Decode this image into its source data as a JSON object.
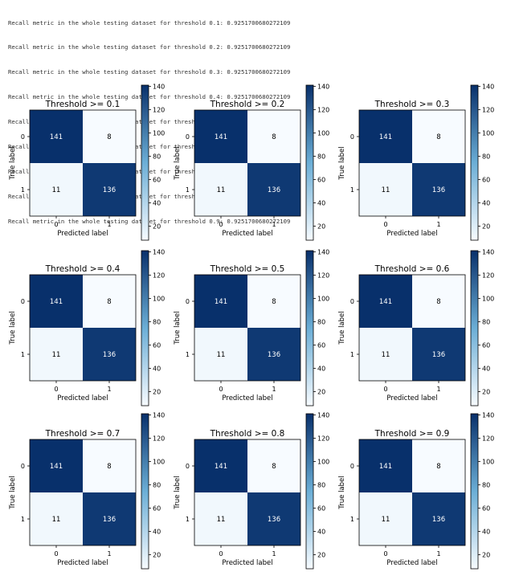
{
  "log_lines": [
    "Recall metric in the whole testing dataset for threshold 0.1: 0.9251700680272109",
    "Recall metric in the whole testing dataset for threshold 0.2: 0.9251700680272109",
    "Recall metric in the whole testing dataset for threshold 0.3: 0.9251700680272109",
    "Recall metric in the whole testing dataset for threshold 0.4: 0.9251700680272109",
    "Recall metric in the whole testing dataset for threshold 0.5: 0.9251700680272109",
    "Recall metric in the whole testing dataset for threshold 0.6: 0.9251700680272109",
    "Recall metric in the whole testing dataset for threshold 0.7: 0.9251700680272109",
    "Recall metric in the whole testing dataset for threshold 0.8: 0.9251700680272109",
    "Recall metric in the whole testing dataset for threshold 0.9: 0.9251700680272109"
  ],
  "colormap": {
    "name": "Blues",
    "low": "#f7fbff",
    "mid": "#6baed6",
    "high": "#08306b",
    "text_light": "#ffffff",
    "text_dark": "#000000"
  },
  "chart_data": [
    {
      "type": "heatmap",
      "title": "Threshold >= 0.1",
      "xlabel": "Predicted label",
      "ylabel": "True label",
      "x_ticks": [
        "0",
        "1"
      ],
      "y_ticks": [
        "0",
        "1"
      ],
      "matrix": [
        [
          141,
          8
        ],
        [
          11,
          136
        ]
      ],
      "colorbar": {
        "range": [
          8,
          141
        ],
        "ticks": [
          20,
          40,
          60,
          80,
          100,
          120,
          140
        ]
      }
    },
    {
      "type": "heatmap",
      "title": "Threshold >= 0.2",
      "xlabel": "Predicted label",
      "ylabel": "True label",
      "x_ticks": [
        "0",
        "1"
      ],
      "y_ticks": [
        "0",
        "1"
      ],
      "matrix": [
        [
          141,
          8
        ],
        [
          11,
          136
        ]
      ],
      "colorbar": {
        "range": [
          8,
          141
        ],
        "ticks": [
          20,
          40,
          60,
          80,
          100,
          120,
          140
        ]
      }
    },
    {
      "type": "heatmap",
      "title": "Threshold >= 0.3",
      "xlabel": "Predicted label",
      "ylabel": "True label",
      "x_ticks": [
        "0",
        "1"
      ],
      "y_ticks": [
        "0",
        "1"
      ],
      "matrix": [
        [
          141,
          8
        ],
        [
          11,
          136
        ]
      ],
      "colorbar": {
        "range": [
          8,
          141
        ],
        "ticks": [
          20,
          40,
          60,
          80,
          100,
          120,
          140
        ]
      }
    },
    {
      "type": "heatmap",
      "title": "Threshold >= 0.4",
      "xlabel": "Predicted label",
      "ylabel": "True label",
      "x_ticks": [
        "0",
        "1"
      ],
      "y_ticks": [
        "0",
        "1"
      ],
      "matrix": [
        [
          141,
          8
        ],
        [
          11,
          136
        ]
      ],
      "colorbar": {
        "range": [
          8,
          141
        ],
        "ticks": [
          20,
          40,
          60,
          80,
          100,
          120,
          140
        ]
      }
    },
    {
      "type": "heatmap",
      "title": "Threshold >= 0.5",
      "xlabel": "Predicted label",
      "ylabel": "True label",
      "x_ticks": [
        "0",
        "1"
      ],
      "y_ticks": [
        "0",
        "1"
      ],
      "matrix": [
        [
          141,
          8
        ],
        [
          11,
          136
        ]
      ],
      "colorbar": {
        "range": [
          8,
          141
        ],
        "ticks": [
          20,
          40,
          60,
          80,
          100,
          120,
          140
        ]
      }
    },
    {
      "type": "heatmap",
      "title": "Threshold >= 0.6",
      "xlabel": "Predicted label",
      "ylabel": "True label",
      "x_ticks": [
        "0",
        "1"
      ],
      "y_ticks": [
        "0",
        "1"
      ],
      "matrix": [
        [
          141,
          8
        ],
        [
          11,
          136
        ]
      ],
      "colorbar": {
        "range": [
          8,
          141
        ],
        "ticks": [
          20,
          40,
          60,
          80,
          100,
          120,
          140
        ]
      }
    },
    {
      "type": "heatmap",
      "title": "Threshold >= 0.7",
      "xlabel": "Predicted label",
      "ylabel": "True label",
      "x_ticks": [
        "0",
        "1"
      ],
      "y_ticks": [
        "0",
        "1"
      ],
      "matrix": [
        [
          141,
          8
        ],
        [
          11,
          136
        ]
      ],
      "colorbar": {
        "range": [
          8,
          141
        ],
        "ticks": [
          20,
          40,
          60,
          80,
          100,
          120,
          140
        ]
      }
    },
    {
      "type": "heatmap",
      "title": "Threshold >= 0.8",
      "xlabel": "Predicted label",
      "ylabel": "True label",
      "x_ticks": [
        "0",
        "1"
      ],
      "y_ticks": [
        "0",
        "1"
      ],
      "matrix": [
        [
          141,
          8
        ],
        [
          11,
          136
        ]
      ],
      "colorbar": {
        "range": [
          8,
          141
        ],
        "ticks": [
          20,
          40,
          60,
          80,
          100,
          120,
          140
        ]
      }
    },
    {
      "type": "heatmap",
      "title": "Threshold >= 0.9",
      "xlabel": "Predicted label",
      "ylabel": "True label",
      "x_ticks": [
        "0",
        "1"
      ],
      "y_ticks": [
        "0",
        "1"
      ],
      "matrix": [
        [
          141,
          8
        ],
        [
          11,
          136
        ]
      ],
      "colorbar": {
        "range": [
          8,
          141
        ],
        "ticks": [
          20,
          40,
          60,
          80,
          100,
          120,
          140
        ]
      }
    }
  ]
}
